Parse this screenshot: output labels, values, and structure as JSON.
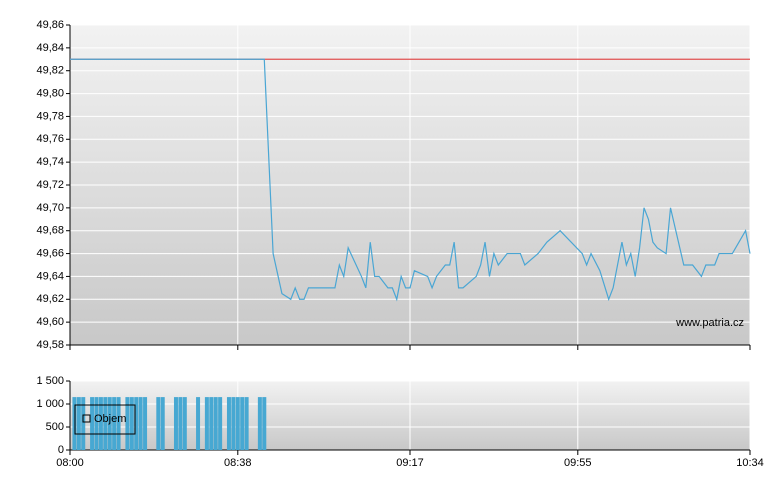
{
  "chart_data": [
    {
      "type": "line",
      "xlim": [
        "08:00",
        "10:34"
      ],
      "ylim": [
        49.58,
        49.86
      ],
      "yticks": [
        {
          "value": 49.58,
          "label": "49,58"
        },
        {
          "value": 49.6,
          "label": "49,60"
        },
        {
          "value": 49.62,
          "label": "49,62"
        },
        {
          "value": 49.64,
          "label": "49,64"
        },
        {
          "value": 49.66,
          "label": "49,66"
        },
        {
          "value": 49.68,
          "label": "49,68"
        },
        {
          "value": 49.7,
          "label": "49,70"
        },
        {
          "value": 49.72,
          "label": "49,72"
        },
        {
          "value": 49.74,
          "label": "49,74"
        },
        {
          "value": 49.76,
          "label": "49,76"
        },
        {
          "value": 49.78,
          "label": "49,78"
        },
        {
          "value": 49.8,
          "label": "49,80"
        },
        {
          "value": 49.82,
          "label": "49,82"
        },
        {
          "value": 49.84,
          "label": "49,84"
        },
        {
          "value": 49.86,
          "label": "49,86"
        }
      ],
      "grid": true,
      "reference_line": {
        "value": 49.83,
        "color": "#e05050"
      },
      "annotation": "www.patria.cz",
      "series": [
        {
          "color": "#4aa6d4",
          "x": [
            "08:00",
            "08:44",
            "08:46",
            "08:48",
            "08:50",
            "08:51",
            "08:52",
            "08:53",
            "08:54",
            "08:55",
            "09:00",
            "09:01",
            "09:02",
            "09:03",
            "09:06",
            "09:07",
            "09:08",
            "09:09",
            "09:10",
            "09:12",
            "09:13",
            "09:14",
            "09:15",
            "09:16",
            "09:17",
            "09:18",
            "09:21",
            "09:22",
            "09:23",
            "09:25",
            "09:26",
            "09:27",
            "09:28",
            "09:29",
            "09:32",
            "09:33",
            "09:34",
            "09:35",
            "09:36",
            "09:37",
            "09:39",
            "09:42",
            "09:43",
            "09:46",
            "09:48",
            "09:51",
            "09:56",
            "09:57",
            "09:58",
            "10:00",
            "10:02",
            "10:03",
            "10:05",
            "10:06",
            "10:07",
            "10:08",
            "10:09",
            "10:10",
            "10:11",
            "10:12",
            "10:13",
            "10:15",
            "10:16",
            "10:19",
            "10:21",
            "10:23",
            "10:24",
            "10:26",
            "10:27",
            "10:30",
            "10:33",
            "10:34"
          ],
          "values": [
            49.83,
            49.83,
            49.66,
            49.625,
            49.62,
            49.63,
            49.62,
            49.62,
            49.63,
            49.63,
            49.63,
            49.65,
            49.64,
            49.665,
            49.64,
            49.63,
            49.67,
            49.64,
            49.64,
            49.63,
            49.63,
            49.62,
            49.64,
            49.63,
            49.63,
            49.645,
            49.64,
            49.63,
            49.64,
            49.65,
            49.65,
            49.67,
            49.63,
            49.63,
            49.64,
            49.65,
            49.67,
            49.64,
            49.66,
            49.65,
            49.66,
            49.66,
            49.65,
            49.66,
            49.67,
            49.68,
            49.66,
            49.65,
            49.66,
            49.645,
            49.62,
            49.63,
            49.67,
            49.65,
            49.66,
            49.64,
            49.665,
            49.7,
            49.69,
            49.67,
            49.665,
            49.66,
            49.7,
            49.65,
            49.65,
            49.64,
            49.65,
            49.65,
            49.66,
            49.66,
            49.68,
            49.66
          ]
        }
      ]
    },
    {
      "type": "bar",
      "xlim": [
        "08:00",
        "10:34"
      ],
      "xticks": [
        "08:00",
        "08:38",
        "09:17",
        "09:55",
        "10:34"
      ],
      "ylim": [
        0,
        1500
      ],
      "yticks": [
        0,
        500,
        {
          "value": 1000,
          "label": "1 000"
        },
        {
          "value": 1500,
          "label": "1 500"
        }
      ],
      "grid": true,
      "series": [
        {
          "name": "Objem",
          "color": "#47a8d2",
          "x": [
            "08:01",
            "08:02",
            "08:03",
            "08:05",
            "08:06",
            "08:07",
            "08:08",
            "08:09",
            "08:10",
            "08:11",
            "08:13",
            "08:14",
            "08:15",
            "08:16",
            "08:17",
            "08:20",
            "08:21",
            "08:24",
            "08:25",
            "08:26",
            "08:29",
            "08:31",
            "08:32",
            "08:33",
            "08:34",
            "08:36",
            "08:37",
            "08:38",
            "08:39",
            "08:40",
            "08:43",
            "08:44"
          ],
          "values": [
            1150,
            1150,
            1150,
            1150,
            1150,
            1150,
            1150,
            1150,
            1150,
            1150,
            1150,
            1150,
            1150,
            1150,
            1150,
            1150,
            1150,
            1150,
            1150,
            1150,
            1150,
            1150,
            1150,
            1150,
            1150,
            1150,
            1150,
            1150,
            1150,
            1150,
            1150,
            1150
          ]
        }
      ]
    }
  ]
}
